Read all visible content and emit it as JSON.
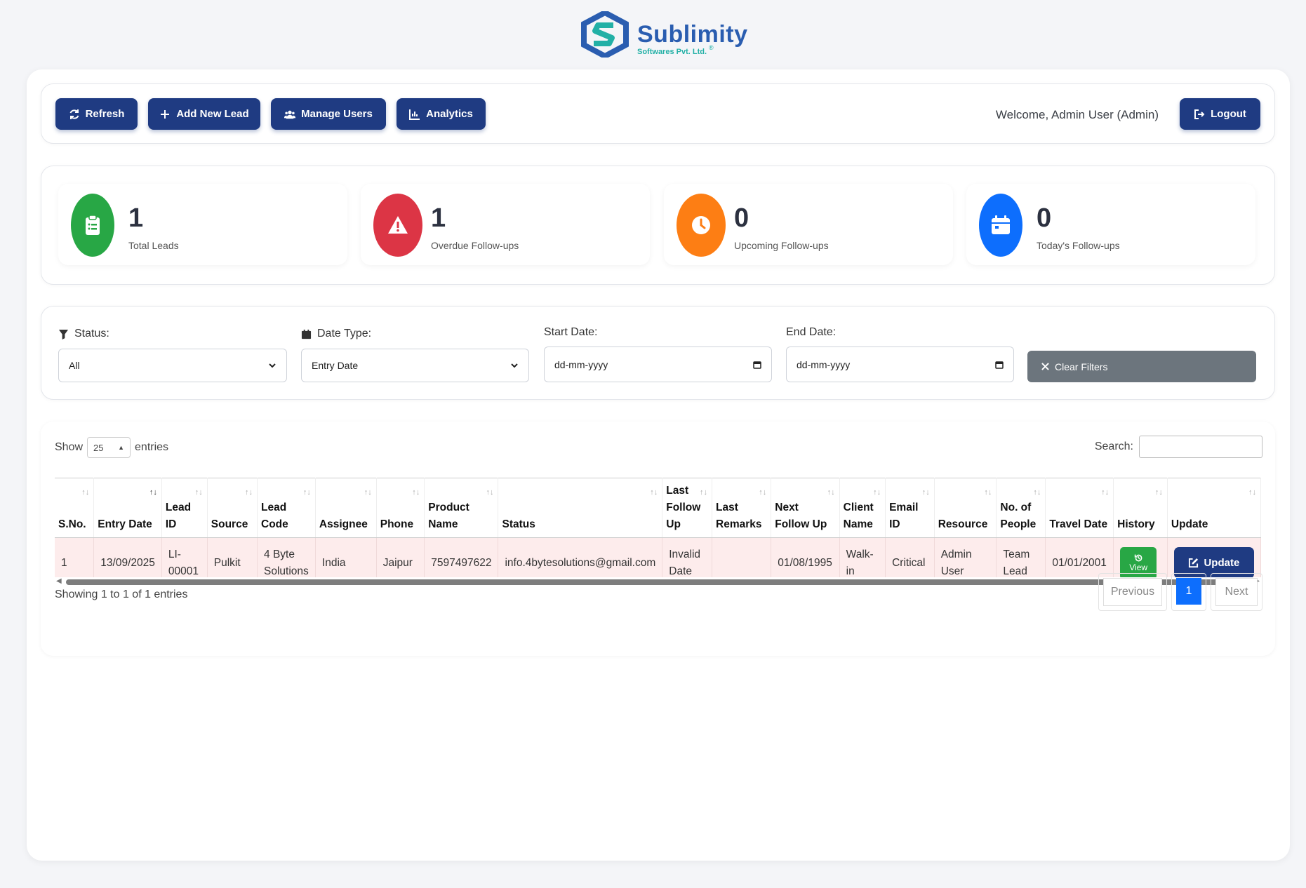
{
  "brand": {
    "name": "Sublimity",
    "subtitle": "Softwares Pvt. Ltd.",
    "reg": "®",
    "colors": {
      "primary": "#2a5db0",
      "teal": "#22b0a6"
    }
  },
  "toolbar": {
    "refresh": "Refresh",
    "add_lead": "Add New Lead",
    "manage_users": "Manage Users",
    "analytics": "Analytics",
    "welcome": "Welcome, Admin User (Admin)",
    "logout": "Logout",
    "button_color": "#1f3b82"
  },
  "stats": [
    {
      "value": "1",
      "label": "Total Leads",
      "color": "#28a745",
      "icon": "clipboard-list-icon"
    },
    {
      "value": "1",
      "label": "Overdue Follow-ups",
      "color": "#dc3545",
      "icon": "warning-icon"
    },
    {
      "value": "0",
      "label": "Upcoming Follow-ups",
      "color": "#fd7e14",
      "icon": "clock-icon"
    },
    {
      "value": "0",
      "label": "Today's Follow-ups",
      "color": "#0d6efd",
      "icon": "calendar-icon"
    }
  ],
  "filters": {
    "status_label": "Status:",
    "status_value": "All",
    "date_type_label": "Date Type:",
    "date_type_value": "Entry Date",
    "start_label": "Start Date:",
    "start_placeholder": "dd-mm-yyyy",
    "end_label": "End Date:",
    "end_placeholder": "dd-mm-yyyy",
    "clear": "Clear Filters"
  },
  "table": {
    "show_label": "Show",
    "length_value": "25",
    "entries_label": "entries",
    "search_label": "Search:",
    "headers": [
      "S.No.",
      "Entry Date",
      "Lead ID",
      "Source",
      "Lead Code",
      "Assignee",
      "Phone",
      "Product Name",
      "Status",
      "Last Follow Up",
      "Last Remarks",
      "Next Follow Up",
      "Client Name",
      "Email ID",
      "Resource",
      "No. of People",
      "Travel Date",
      "History",
      "Update"
    ],
    "rows": [
      {
        "cells": [
          "1",
          "13/09/2025",
          "LI-00001",
          "Pulkit",
          "4 Byte Solutions",
          "India",
          "Jaipur",
          "7597497622",
          "info.4bytesolutions@gmail.com",
          "Invalid Date",
          "",
          "01/08/1995",
          "Walk-in",
          "Critical",
          "Admin User",
          "Team Lead",
          "01/01/2001"
        ],
        "view": "View",
        "update": "Update"
      }
    ],
    "info": "Showing 1 to 1 of 1 entries",
    "previous": "Previous",
    "current_page": "1",
    "next": "Next"
  }
}
